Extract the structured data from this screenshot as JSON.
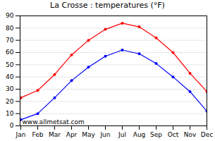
{
  "chart_data": {
    "type": "line",
    "title": "La Crosse : temperatures (°F)",
    "categories": [
      "Jan",
      "Feb",
      "Mar",
      "Apr",
      "May",
      "Jun",
      "Jul",
      "Aug",
      "Sep",
      "Oct",
      "Nov",
      "Dec"
    ],
    "series": [
      {
        "color": "#ff0000",
        "marker": "circle",
        "line_style": "solid",
        "values": [
          23,
          29,
          42,
          58,
          70,
          79,
          84,
          81,
          72,
          60,
          43,
          28
        ]
      },
      {
        "color": "#0000ff",
        "marker": "circle",
        "line_style": "solid",
        "values": [
          5,
          10,
          23,
          37,
          48,
          57,
          62,
          59,
          51,
          40,
          28,
          12
        ]
      }
    ],
    "ylim": [
      0,
      90
    ],
    "yticks": [
      0,
      10,
      20,
      30,
      40,
      50,
      60,
      70,
      80,
      90
    ],
    "grid": true,
    "annotations": [
      "www.allmetsat.com"
    ]
  }
}
